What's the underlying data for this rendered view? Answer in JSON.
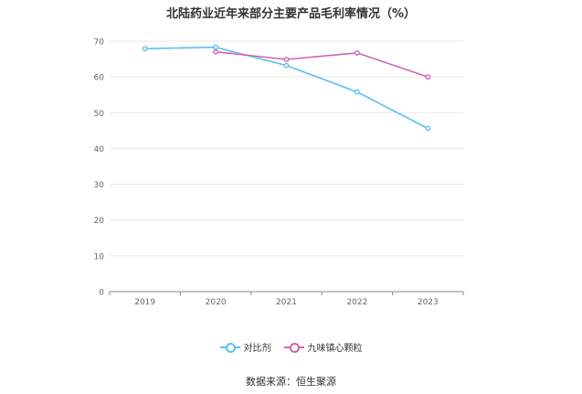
{
  "chart_data": {
    "type": "line",
    "title": "北陆药业近年来部分主要产品毛利率情况（%）",
    "x": [
      "2019",
      "2020",
      "2021",
      "2022",
      "2023"
    ],
    "ylim": [
      0,
      70
    ],
    "yticks": [
      0,
      10,
      20,
      30,
      40,
      50,
      60,
      70
    ],
    "grid": true,
    "legend_position": "bottom",
    "series": [
      {
        "name": "对比剂",
        "color": "#5bc0eb",
        "values": [
          67.9,
          68.3,
          63.2,
          55.8,
          45.6
        ]
      },
      {
        "name": "九味镇心颗粒",
        "color": "#d062b4",
        "values": [
          null,
          67.0,
          64.9,
          66.7,
          60.0
        ]
      }
    ]
  },
  "source": "数据来源：恒生聚源"
}
